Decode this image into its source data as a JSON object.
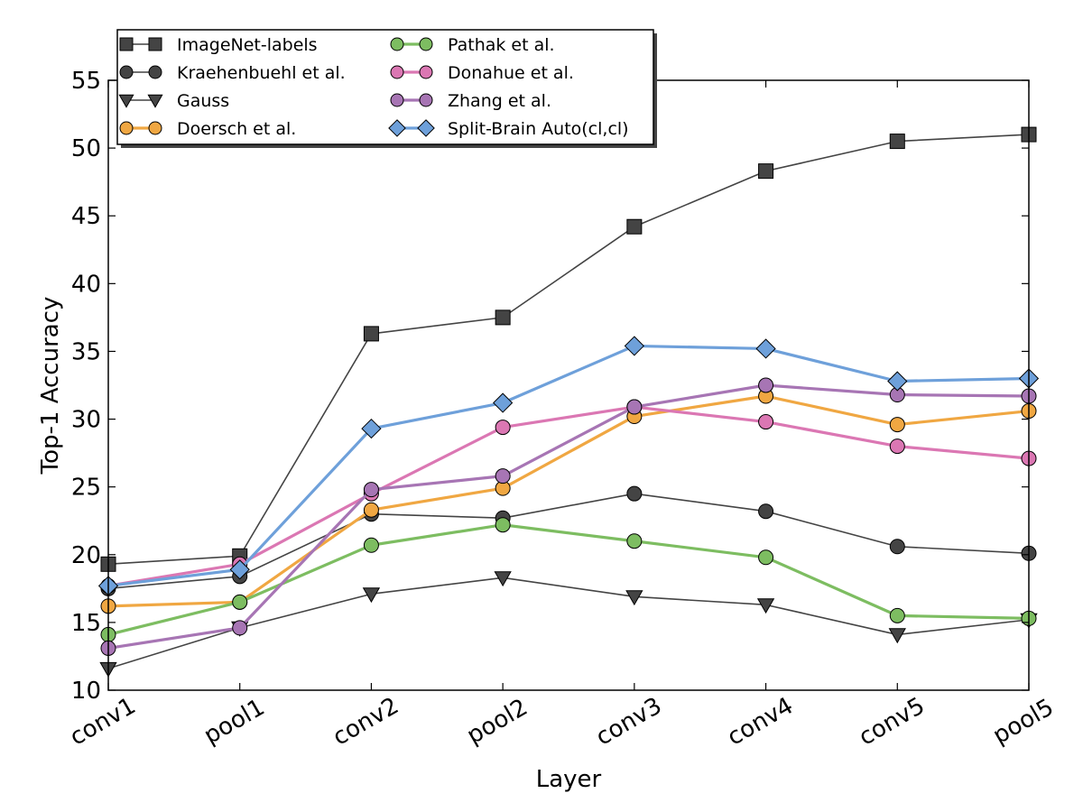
{
  "chart_data": {
    "type": "line",
    "title": "",
    "xlabel": "Layer",
    "ylabel": "Top-1 Accuracy",
    "categories": [
      "conv1",
      "pool1",
      "conv2",
      "pool2",
      "conv3",
      "conv4",
      "conv5",
      "pool5"
    ],
    "ylim": [
      10,
      55
    ],
    "yticks": [
      "10",
      "15",
      "20",
      "25",
      "30",
      "35",
      "40",
      "45",
      "50",
      "55"
    ],
    "grid": false,
    "legend_position": "top-left",
    "series": [
      {
        "name": "ImageNet-labels",
        "color": "#444444",
        "marker": "square",
        "line_width": 1.6,
        "values": [
          19.3,
          19.9,
          36.3,
          37.5,
          44.2,
          48.3,
          50.5,
          51.0
        ]
      },
      {
        "name": "Kraehenbuehl et al.",
        "color": "#444444",
        "marker": "circle",
        "line_width": 1.6,
        "values": [
          17.5,
          18.4,
          23.0,
          22.7,
          24.5,
          23.2,
          20.6,
          20.1
        ]
      },
      {
        "name": "Gauss",
        "color": "#444444",
        "marker": "triangle-down",
        "line_width": 1.6,
        "values": [
          11.6,
          14.6,
          17.1,
          18.3,
          16.9,
          16.3,
          14.1,
          15.2
        ]
      },
      {
        "name": "Doersch et al.",
        "color": "#f0a742",
        "marker": "circle",
        "line_width": 3.2,
        "values": [
          16.2,
          16.5,
          23.3,
          24.9,
          30.2,
          31.7,
          29.6,
          30.6
        ]
      },
      {
        "name": "Pathak et al.",
        "color": "#7dbd61",
        "marker": "circle",
        "line_width": 3.2,
        "values": [
          14.1,
          16.5,
          20.7,
          22.2,
          21.0,
          19.8,
          15.5,
          15.3
        ]
      },
      {
        "name": "Donahue et al.",
        "color": "#db77b3",
        "marker": "circle",
        "line_width": 3.2,
        "values": [
          17.7,
          19.3,
          24.5,
          29.4,
          30.9,
          29.8,
          28.0,
          27.1
        ]
      },
      {
        "name": "Zhang et al.",
        "color": "#a775b4",
        "marker": "circle",
        "line_width": 3.2,
        "values": [
          13.1,
          14.6,
          24.8,
          25.8,
          30.9,
          32.5,
          31.8,
          31.7
        ]
      },
      {
        "name": "Split-Brain Auto(cl,cl)",
        "color": "#6ea0da",
        "marker": "diamond",
        "line_width": 3.2,
        "values": [
          17.7,
          18.9,
          29.3,
          31.2,
          35.4,
          35.2,
          32.8,
          33.0
        ]
      }
    ]
  }
}
